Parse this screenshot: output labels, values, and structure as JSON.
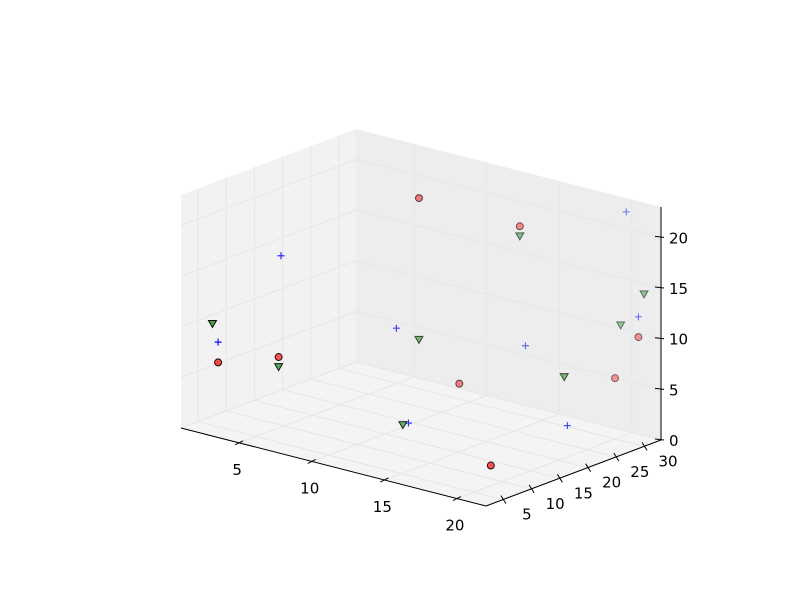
{
  "chart_data": {
    "type": "scatter",
    "projection": "3d",
    "title": "",
    "xlabel": "",
    "ylabel": "",
    "zlabel": "",
    "grid": true,
    "xlim": [
      1,
      22
    ],
    "ylim": [
      2,
      33
    ],
    "zlim": [
      0,
      23
    ],
    "x_ticks": [
      "5",
      "10",
      "15",
      "20"
    ],
    "y_ticks": [
      "5",
      "10",
      "15",
      "20",
      "25",
      "30"
    ],
    "z_ticks": [
      "0",
      "5",
      "10",
      "15",
      "20"
    ],
    "colors": {
      "red": "#ff0000",
      "blue": "#0000ff",
      "green": "#007f00",
      "pane_back": "#ededed",
      "pane_side": "#f2f2f2",
      "pane_floor": "#f4f4f4",
      "grid": "#e6e6e6"
    },
    "series": [
      {
        "marker": "circle",
        "color": "#ff0000",
        "points": [
          {
            "x": 2,
            "y": 6,
            "z": 6
          },
          {
            "x": 5,
            "y": 9,
            "z": 7
          },
          {
            "x": 12,
            "y": 23,
            "z": 4
          },
          {
            "x": 10,
            "y": 21,
            "z": 22
          },
          {
            "x": 15,
            "y": 26,
            "z": 20
          },
          {
            "x": 20,
            "y": 8,
            "z": 2
          },
          {
            "x": 20,
            "y": 30,
            "z": 6
          },
          {
            "x": 22,
            "y": 29,
            "z": 11
          }
        ]
      },
      {
        "marker": "plus",
        "color": "#0000ff",
        "points": [
          {
            "x": 2,
            "y": 6,
            "z": 8
          },
          {
            "x": 4,
            "y": 12,
            "z": 16
          },
          {
            "x": 10,
            "y": 17,
            "z": 10
          },
          {
            "x": 12,
            "y": 14,
            "z": 2
          },
          {
            "x": 15,
            "y": 27,
            "z": 8
          },
          {
            "x": 21,
            "y": 19,
            "z": 4
          },
          {
            "x": 20,
            "y": 32,
            "z": 22
          },
          {
            "x": 22,
            "y": 29,
            "z": 13
          }
        ]
      },
      {
        "marker": "triangle_down",
        "color": "#007f00",
        "points": [
          {
            "x": 2,
            "y": 5,
            "z": 10
          },
          {
            "x": 5,
            "y": 9,
            "z": 6
          },
          {
            "x": 12,
            "y": 13,
            "z": 2
          },
          {
            "x": 10,
            "y": 21,
            "z": 8
          },
          {
            "x": 15,
            "y": 26,
            "z": 19
          },
          {
            "x": 20,
            "y": 21,
            "z": 8
          },
          {
            "x": 20,
            "y": 31,
            "z": 11
          },
          {
            "x": 22,
            "y": 30,
            "z": 15
          }
        ]
      }
    ]
  }
}
